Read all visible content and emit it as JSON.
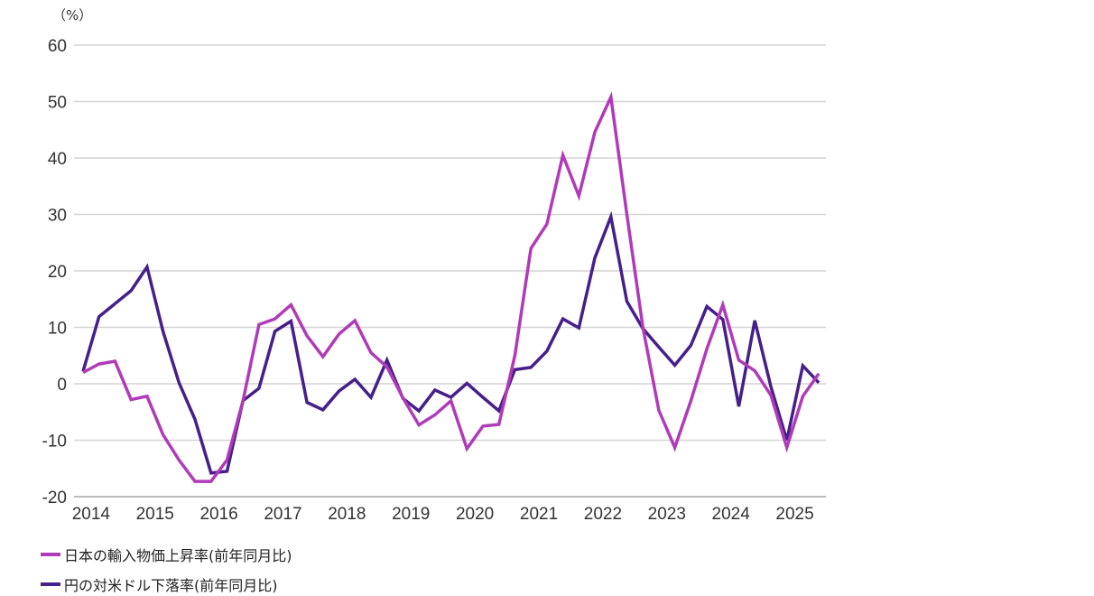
{
  "chart_data": {
    "type": "line",
    "unit_label": "（%）",
    "ylim": [
      -20,
      60
    ],
    "yticks": [
      60,
      50,
      40,
      30,
      20,
      10,
      0,
      -10,
      -20
    ],
    "xticks": [
      "2014",
      "2015",
      "2016",
      "2017",
      "2018",
      "2019",
      "2020",
      "2021",
      "2022",
      "2023",
      "2024",
      "2025"
    ],
    "x_start": "2014 Q1",
    "x_frequency": "quarterly",
    "grid": true,
    "legend_position": "bottom-left",
    "series": [
      {
        "name": "日本の輸入物価上昇率(前年同月比)",
        "color": "#b03bb8",
        "values": [
          2,
          3.5,
          4,
          -2.8,
          -2.2,
          -9,
          -13.5,
          -17.3,
          -17.3,
          -13.5,
          -3,
          10.5,
          11.5,
          14,
          8.5,
          4.8,
          8.8,
          11.2,
          5.5,
          3,
          -2.5,
          -7.3,
          -5.5,
          -3,
          -11.5,
          -7.5,
          -7.2,
          5,
          24,
          28.3,
          40.5,
          33.3,
          44.6,
          50.8,
          30,
          10,
          -4.7,
          -11.3,
          -3,
          6.2,
          14,
          4.2,
          2.3,
          -2,
          -11.3,
          -2.2,
          1.8
        ]
      },
      {
        "name": "円の対米ドル下落率(前年同月比)",
        "color": "#45208a",
        "values": [
          2.2,
          11.9,
          14.2,
          16.5,
          20.7,
          9.3,
          0.2,
          -6.3,
          -15.8,
          -15.5,
          -3,
          -0.8,
          9.3,
          11.1,
          -3.3,
          -4.6,
          -1.3,
          0.8,
          -2.4,
          4.2,
          -2.6,
          -4.8,
          -1.1,
          -2.4,
          0.1,
          -2.4,
          -4.8,
          2.5,
          2.9,
          5.8,
          11.5,
          9.9,
          22.3,
          29.6,
          14.6,
          9.8,
          6.5,
          3.3,
          6.8,
          13.7,
          11.4,
          -4,
          11.2,
          -0.5,
          -10,
          3.2,
          0.2
        ]
      }
    ]
  }
}
